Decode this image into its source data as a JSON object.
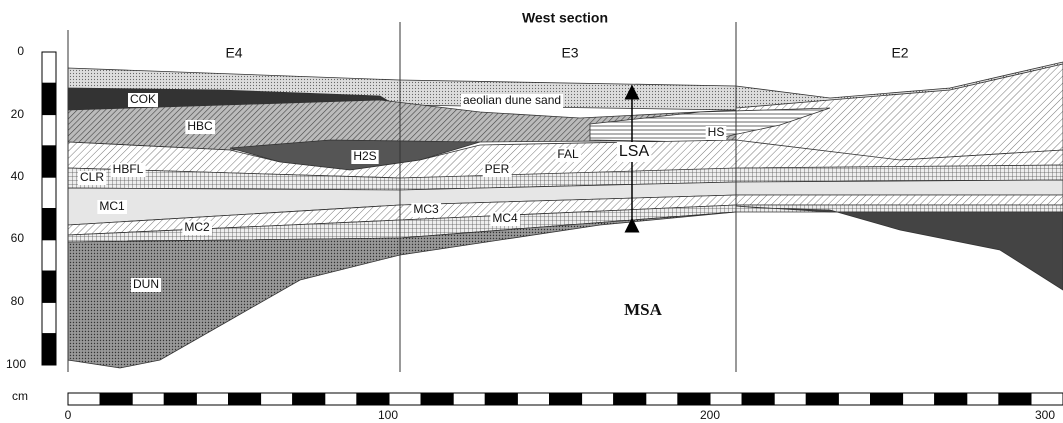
{
  "header": {
    "title": "West section"
  },
  "columns": [
    "E4",
    "E3",
    "E2"
  ],
  "layers": {
    "aeolian": "aeolian dune sand",
    "cok": "COK",
    "hbc": "HBC",
    "h2s": "H2S",
    "hs": "HS",
    "fal": "FAL",
    "per": "PER",
    "hbfl": "HBFL",
    "clr": "CLR",
    "mc1": "MC1",
    "mc2": "MC2",
    "mc3": "MC3",
    "mc4": "MC4",
    "dun": "DUN"
  },
  "units": {
    "lsa": "LSA",
    "msa": "MSA"
  },
  "depth_scale": {
    "labels": [
      "0",
      "20",
      "40",
      "60",
      "80",
      "100"
    ],
    "unit": "cm"
  },
  "width_scale": {
    "labels": [
      "0",
      "100",
      "200",
      "300"
    ]
  }
}
